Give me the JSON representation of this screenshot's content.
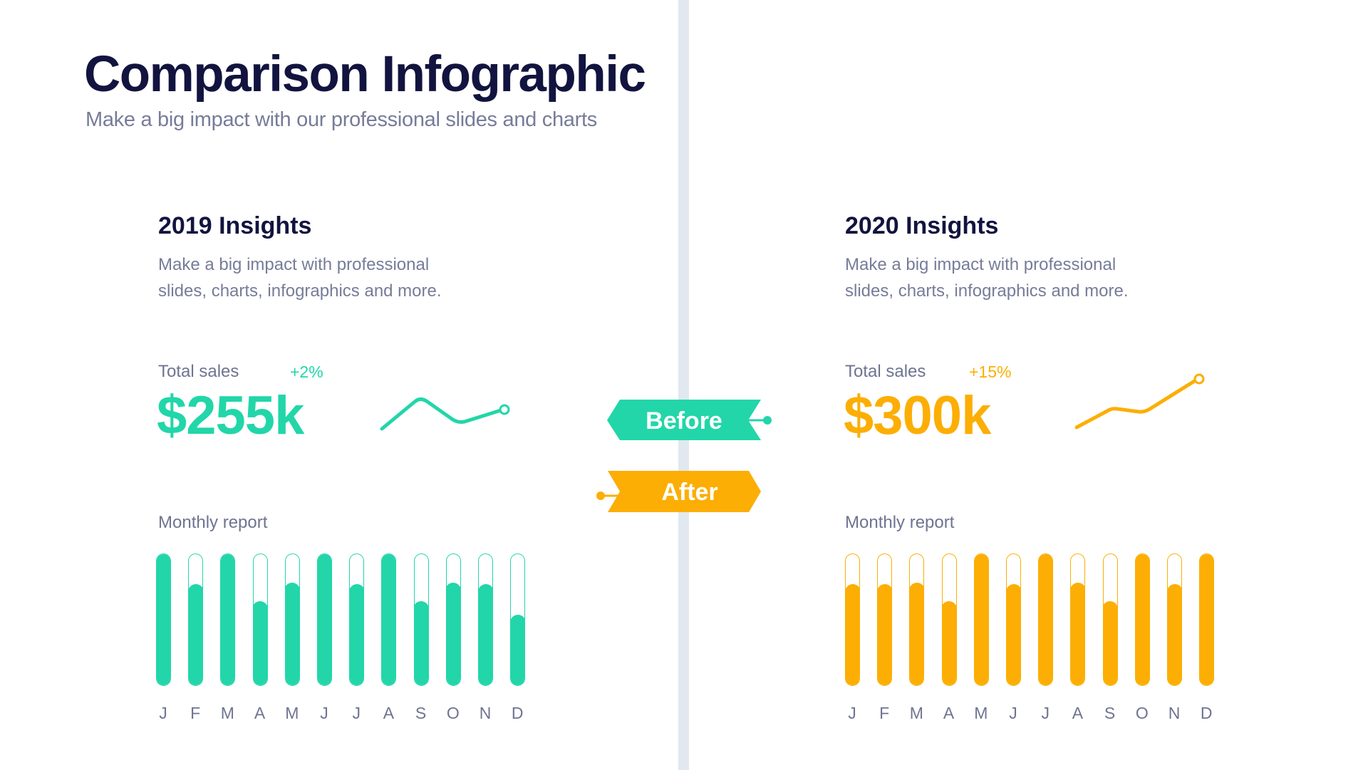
{
  "header": {
    "title": "Comparison Infographic",
    "subtitle": "Make a big impact with our professional slides and charts"
  },
  "colors": {
    "before": "#22d6a9",
    "after": "#fcae04",
    "title": "#12143f",
    "muted": "#767c99",
    "divider": "#e2e8ef"
  },
  "badges": {
    "before": "Before",
    "after": "After"
  },
  "panels": {
    "left": {
      "heading": "2019 Insights",
      "desc_line1": "Make a big impact with professional",
      "desc_line2": "slides, charts, infographics and more.",
      "total_label": "Total sales",
      "delta": "+2%",
      "value": "$255k",
      "monthly_label": "Monthly report"
    },
    "right": {
      "heading": "2020 Insights",
      "desc_line1": "Make a big impact with professional",
      "desc_line2": "slides, charts, infographics and more.",
      "total_label": "Total sales",
      "delta": "+15%",
      "value": "$300k",
      "monthly_label": "Monthly report"
    }
  },
  "chart_data": [
    {
      "type": "bar",
      "title": "2019 Monthly report",
      "categories": [
        "J",
        "F",
        "M",
        "A",
        "M",
        "J",
        "J",
        "A",
        "S",
        "O",
        "N",
        "D"
      ],
      "values": [
        100,
        77,
        100,
        64,
        78,
        100,
        77,
        100,
        64,
        78,
        77,
        54
      ],
      "ylim": [
        0,
        100
      ],
      "unit": "percent of track",
      "color": "#22d6a9",
      "grid": false
    },
    {
      "type": "bar",
      "title": "2020 Monthly report",
      "categories": [
        "J",
        "F",
        "M",
        "A",
        "M",
        "J",
        "J",
        "A",
        "S",
        "O",
        "N",
        "D"
      ],
      "values": [
        77,
        77,
        78,
        64,
        100,
        77,
        100,
        78,
        64,
        100,
        77,
        100
      ],
      "ylim": [
        0,
        100
      ],
      "unit": "percent of track",
      "color": "#fcae04",
      "grid": false
    },
    {
      "type": "line",
      "title": "2019 Total sales sparkline",
      "x": [
        0,
        1,
        2,
        3
      ],
      "values": [
        0,
        1.0,
        0.25,
        0.66
      ],
      "color": "#22d6a9"
    },
    {
      "type": "line",
      "title": "2020 Total sales sparkline",
      "x": [
        0,
        1,
        2,
        3
      ],
      "values": [
        0,
        0.39,
        0.28,
        1.0
      ],
      "color": "#fcae04"
    }
  ]
}
